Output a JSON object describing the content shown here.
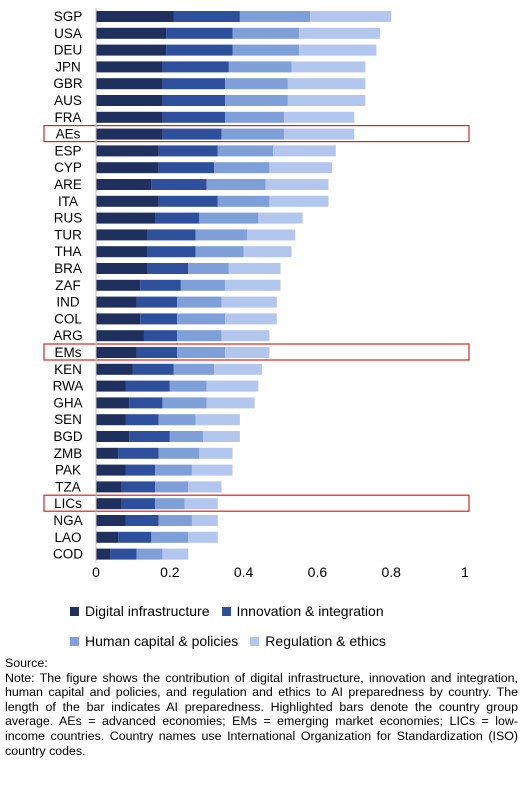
{
  "chart_data": {
    "type": "bar",
    "orientation": "horizontal",
    "stacked": true,
    "categories": [
      "SGP",
      "USA",
      "DEU",
      "JPN",
      "GBR",
      "AUS",
      "FRA",
      "AEs",
      "ESP",
      "CYP",
      "ARE",
      "ITA",
      "RUS",
      "TUR",
      "THA",
      "BRA",
      "ZAF",
      "IND",
      "COL",
      "ARG",
      "EMs",
      "KEN",
      "RWA",
      "GHA",
      "SEN",
      "BGD",
      "ZMB",
      "PAK",
      "TZA",
      "LICs",
      "NGA",
      "LAO",
      "COD"
    ],
    "highlighted": [
      "AEs",
      "EMs",
      "LICs"
    ],
    "series": [
      {
        "name": "Digital infrastructure",
        "color": "#1f2f5e",
        "values": [
          0.21,
          0.19,
          0.19,
          0.18,
          0.18,
          0.18,
          0.18,
          0.18,
          0.17,
          0.17,
          0.15,
          0.17,
          0.16,
          0.14,
          0.14,
          0.14,
          0.12,
          0.11,
          0.12,
          0.13,
          0.11,
          0.1,
          0.08,
          0.09,
          0.08,
          0.09,
          0.06,
          0.08,
          0.07,
          0.07,
          0.08,
          0.06,
          0.04
        ]
      },
      {
        "name": "Innovation & integration",
        "color": "#2d4f9c",
        "values": [
          0.18,
          0.18,
          0.18,
          0.18,
          0.17,
          0.17,
          0.17,
          0.16,
          0.16,
          0.15,
          0.15,
          0.16,
          0.12,
          0.13,
          0.13,
          0.11,
          0.11,
          0.11,
          0.1,
          0.09,
          0.11,
          0.11,
          0.12,
          0.09,
          0.09,
          0.11,
          0.11,
          0.08,
          0.09,
          0.09,
          0.09,
          0.09,
          0.07
        ]
      },
      {
        "name": "Human capital & policies",
        "color": "#7f9fd8",
        "values": [
          0.19,
          0.18,
          0.18,
          0.17,
          0.17,
          0.17,
          0.16,
          0.17,
          0.15,
          0.15,
          0.16,
          0.14,
          0.16,
          0.14,
          0.13,
          0.11,
          0.12,
          0.12,
          0.13,
          0.12,
          0.13,
          0.11,
          0.1,
          0.12,
          0.1,
          0.09,
          0.11,
          0.1,
          0.09,
          0.08,
          0.09,
          0.1,
          0.07
        ]
      },
      {
        "name": "Regulation & ethics",
        "color": "#b3c7ee",
        "values": [
          0.22,
          0.22,
          0.21,
          0.2,
          0.21,
          0.21,
          0.19,
          0.19,
          0.17,
          0.17,
          0.17,
          0.16,
          0.12,
          0.13,
          0.13,
          0.14,
          0.15,
          0.15,
          0.14,
          0.13,
          0.12,
          0.13,
          0.14,
          0.13,
          0.12,
          0.1,
          0.09,
          0.11,
          0.09,
          0.09,
          0.07,
          0.08,
          0.07
        ]
      }
    ],
    "x_ticks": [
      "0",
      "0.2",
      "0.4",
      "0.6",
      "0.8",
      "1"
    ],
    "xlim": [
      0,
      1
    ],
    "legend_position": "bottom",
    "grid": false
  },
  "note": {
    "source_label": "Source:",
    "text": "Note: The figure shows the contribution of digital infrastructure, innovation and integration, human capital and policies, and regulation and ethics to AI preparedness by country. The length of the bar indicates AI preparedness. Highlighted bars denote the country group average. AEs = advanced economies; EMs = emerging market economies; LICs = low-income countries. Country names use International Organization for Standardization (ISO) country codes."
  }
}
